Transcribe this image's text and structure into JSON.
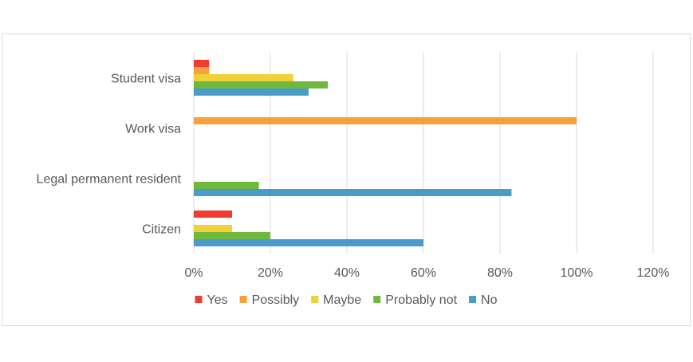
{
  "chart_data": {
    "type": "bar",
    "orientation": "horizontal",
    "categories": [
      "Student visa",
      "Work visa",
      "Legal permanent resident",
      "Citizen"
    ],
    "series": [
      {
        "name": "Yes",
        "color": "#f03c31",
        "values": [
          4,
          0,
          0,
          10
        ]
      },
      {
        "name": "Possibly",
        "color": "#f7a13c",
        "values": [
          4,
          100,
          0,
          0
        ]
      },
      {
        "name": "Maybe",
        "color": "#f0d137",
        "values": [
          26,
          0,
          0,
          10
        ]
      },
      {
        "name": "Probably not",
        "color": "#6fb83c",
        "values": [
          35,
          0,
          17,
          20
        ]
      },
      {
        "name": "No",
        "color": "#4a9bc9",
        "values": [
          30,
          0,
          83,
          60
        ]
      }
    ],
    "xlim": [
      0,
      120
    ],
    "x_ticks": [
      "0%",
      "20%",
      "40%",
      "60%",
      "80%",
      "100%",
      "120%"
    ],
    "grid": true,
    "legend_position": "bottom",
    "legend_square_glyph": "■"
  }
}
